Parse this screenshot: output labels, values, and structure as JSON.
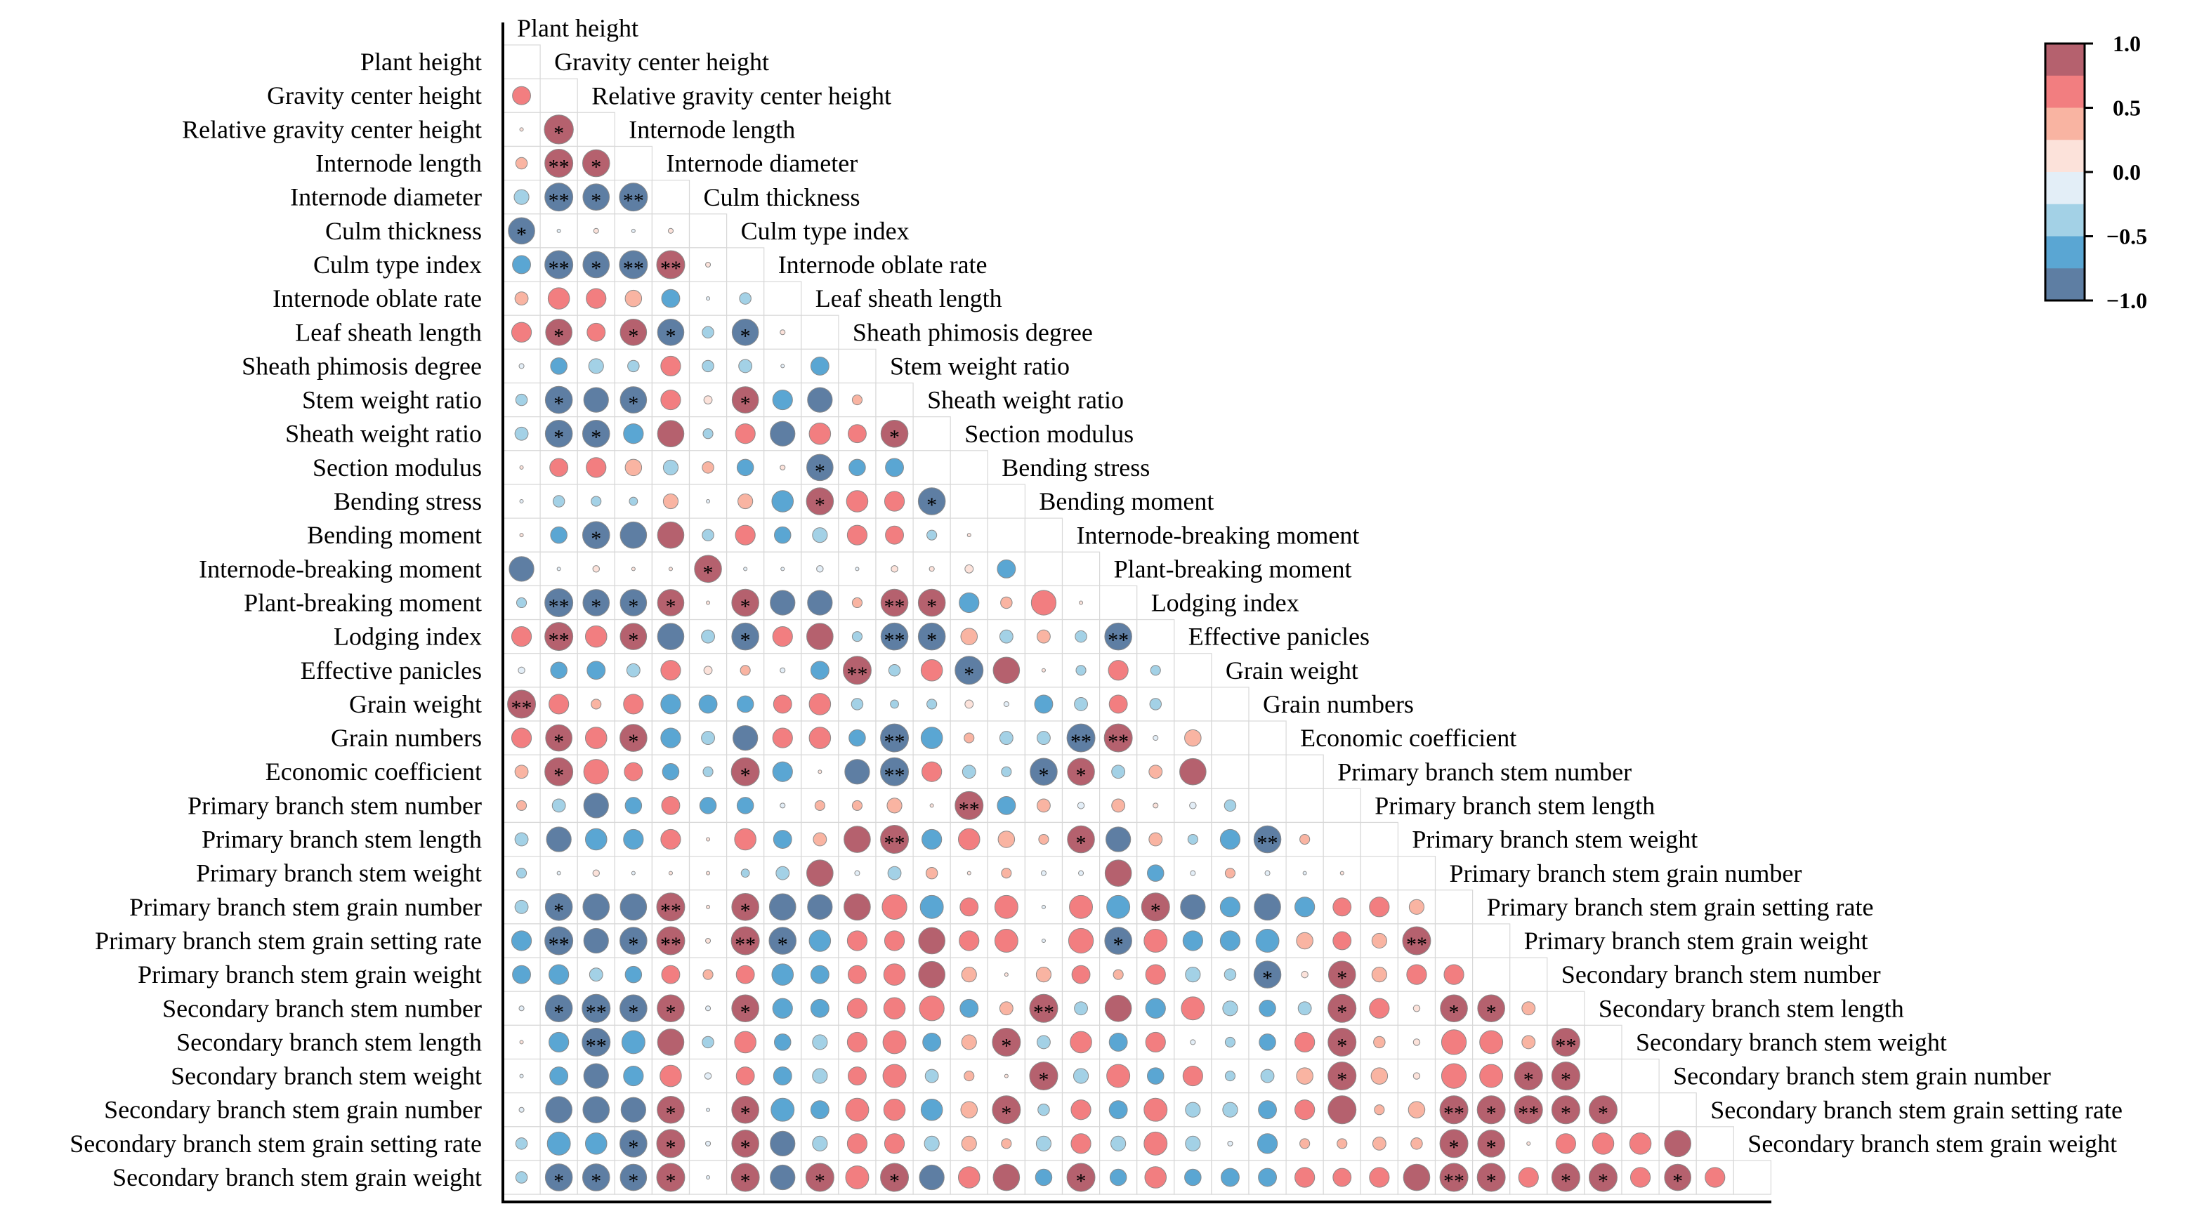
{
  "chart_data": {
    "type": "correlogram",
    "variables": [
      "Plant height",
      "Gravity center height",
      "Relative gravity center height",
      "Internode length",
      "Internode diameter",
      "Culm thickness",
      "Culm type index",
      "Internode oblate rate",
      "Leaf sheath length",
      "Sheath phimosis degree",
      "Stem weight ratio",
      "Sheath weight ratio",
      "Section modulus",
      "Bending stress",
      "Bending moment",
      "Internode-breaking moment",
      "Plant-breaking moment",
      "Lodging index",
      "Effective panicles",
      "Grain weight",
      "Grain numbers",
      "Economic coefficient",
      "Primary branch stem number",
      "Primary branch stem length",
      "Primary branch stem weight",
      "Primary branch stem grain number",
      "Primary branch stem grain setting rate",
      "Primary branch stem grain weight",
      "Secondary branch stem number",
      "Secondary branch stem length",
      "Secondary branch stem weight",
      "Secondary branch stem grain number",
      "Secondary branch stem grain setting rate",
      "Secondary branch stem grain weight"
    ],
    "colorbar": {
      "range": [
        -1.0,
        1.0
      ],
      "ticks": [
        "1.0",
        "0.5",
        "0.0",
        "−0.5",
        "−1.0"
      ],
      "tick_values": [
        1.0,
        0.5,
        0.0,
        -0.5,
        -1.0
      ],
      "colors": [
        "#B5616E",
        "#F27E80",
        "#F9B4A2",
        "#FCE2DA",
        "#E3EEF7",
        "#A3D1E6",
        "#5AA6D3",
        "#5E7EA3"
      ]
    },
    "significance_markers": {
      "p_0_05": "*",
      "p_0_01": "**"
    },
    "correlations": [
      "",
      "0.55",
      "0.10 0.88*",
      "0.35 0.85** 0.82*",
      "-0.45 -0.85** -0.80* -0.85**",
      "-0.80* -0.10 0.15 -0.10 0.15",
      "-0.55 -0.85** -0.80* -0.85** 0.85** 0.15",
      "0.40 0.65 0.60 0.50 -0.55 -0.10 -0.35",
      "0.60 0.80* 0.55 0.80* -0.80* -0.35 -0.80* 0.15",
      "-0.15 -0.50 -0.45 -0.35 0.60 -0.35 -0.40 -0.10 -0.55",
      "-0.35 -0.82* -0.75 -0.80* 0.60 0.25 0.80* -0.60 -0.75 0.30",
      "-0.40 -0.82* -0.82* -0.60 0.80 -0.30 0.60 -0.75 0.65 0.55 0.82*",
      "0.05 0.55 0.60 0.50 -0.45 0.35 -0.50 0.15 -0.80* -0.50 -0.55",
      "-0.10 -0.35 -0.30 -0.25 0.45 -0.10 0.45 -0.65 0.82* 0.65 0.60 -0.82*",
      "0.05 -0.50 -0.82* -0.80 0.80 -0.35 0.60 -0.50 -0.45 0.60 0.55 -0.30 0.10",
      "-0.75 -0.10 0.20 0.05 0.03 0.82* -0.05 -0.10 -0.20 -0.03 0.20 0.15 0.25 -0.55",
      "-0.30 -0.85** -0.80* -0.80* 0.80* 0.10 0.82* -0.75 -0.75 0.30 0.82** 0.82* -0.60 0.35 0.75 0.10",
      "0.60 0.85** 0.65 0.80* -0.80 -0.40 -0.82* 0.60 0.80 -0.30 -0.82** -0.82* 0.50 -0.40 0.40 -0.35 -0.82**",
      "-0.20 -0.50 -0.55 -0.40 0.60 0.25 0.30 -0.15 -0.55 0.85** -0.35 0.65 -0.85* 0.80 0.10 -0.30 0.60 -0.30",
      "0.85** 0.60 0.30 0.60 -0.60 -0.55 -0.50 0.55 0.65 -0.35 -0.25 -0.30 0.25 -0.15 -0.55 -0.40 0.55 -0.35",
      "0.60 0.80* 0.65 0.82* -0.60 -0.40 -0.75 0.60 0.65 -0.50 -0.85** -0.65 0.30 -0.40 -0.40 -0.85** 0.85** -0.15 0.50",
      "0.40 0.85* 0.75 0.55 -0.50 -0.30 0.85* -0.60 0.05 -0.75 -0.85** 0.60 -0.40 -0.30 -0.82* 0.82* -0.40 0.40 0.80",
      "0.30 -0.40 -0.75 -0.50 0.55 -0.50 -0.50 -0.15 0.30 0.30 0.45 0.10 0.85** -0.55 0.40 -0.20 0.40 0.15 -0.20 -0.35",
      "-0.40 -0.75 -0.65 -0.60 0.60 0.05 0.65 -0.55 0.40 0.80 0.85** -0.60 0.65 0.50 0.30 0.82* -0.75 0.40 -0.30 -0.60 -0.82** 0.30",
      "-0.30 -0.10 0.20 -0.05 0.03 0.10 -0.25 -0.40 0.80 -0.15 -0.40 0.35 0.05 0.30 -0.15 -0.15 0.80 -0.50 -0.15 0.30 -0.15 -0.10 0.03",
      "-0.40 -0.82* -0.80 -0.80 0.85** 0.05 0.82* -0.80 -0.75 0.80 0.75 -0.70 0.55 0.70 -0.10 0.70 -0.70 0.85* -0.75 -0.60 -0.80 -0.60 0.55 0.60 0.45",
      "-0.60 -0.85** -0.75 -0.82* 0.85** 0.15 0.85** -0.82* -0.65 0.60 0.60 0.80 0.60 0.70 -0.10 0.75 -0.82* 0.70 -0.60 -0.60 -0.70 0.50 0.55 0.45 0.85**",
      "-0.55 -0.60 -0.40 -0.50 0.55 0.30 0.55 -0.65 -0.55 0.55 0.65 0.80 0.45 0.10 0.45 0.55 0.30 0.60 -0.45 -0.35 -0.82* 0.20 0.82* 0.45 0.60 0.60",
      "-0.15 -0.82* -0.85** -0.82* 0.82* -0.15 0.82* -0.60 -0.55 0.60 0.65 0.75 -0.55 0.40 0.85** -0.40 0.80 -0.60 0.70 -0.45 -0.50 -0.40 0.85* 0.60 0.20 0.82* 0.82* 0.40",
      "0.05 -0.60 -0.85** -0.70 0.80 -0.35 0.65 -0.50 -0.45 0.60 0.70 -0.55 0.45 0.85* -0.40 0.65 -0.55 0.60 -0.15 -0.30 -0.50 0.60 0.85* 0.35 0.20 0.75 0.70 0.40 0.85**",
      "-0.10 -0.55 -0.75 -0.60 0.65 -0.20 0.55 -0.55 -0.45 0.55 0.70 -0.40 0.30 0.02 0.85* -0.45 0.70 -0.50 0.60 -0.30 -0.40 0.50 0.85* 0.50 0.20 0.75 0.70 0.85* 0.85*",
      "-0.15 -0.80 -0.80 -0.75 0.82* -0.10 0.82* -0.70 -0.55 0.70 0.65 -0.65 0.50 0.85* -0.35 0.60 -0.55 0.70 -0.45 -0.45 -0.55 0.60 0.85 0.30 0.50 0.85** 0.85* 0.85** 0.85* 0.85*",
      "-0.35 -0.70 -0.65 -0.82* 0.85* -0.15 0.82* -0.75 -0.45 0.60 0.60 -0.45 0.45 0.30 -0.45 0.60 -0.45 0.70 -0.45 -0.15 -0.60 0.30 0.30 0.40 0.35 0.85* 0.82* 0.05 0.60 0.65 0.65 0.80",
      "-0.35 -0.82* -0.82* -0.80* 0.85* -0.10 0.85* -0.75 0.85* 0.70 0.85* -0.75 0.65 0.80 -0.50 0.85* -0.50 0.65 -0.50 -0.55 -0.55 0.60 0.55 0.60 0.80 0.85** 0.85* 0.60 0.85* 0.85* 0.60 0.80* 0.60"
    ]
  }
}
